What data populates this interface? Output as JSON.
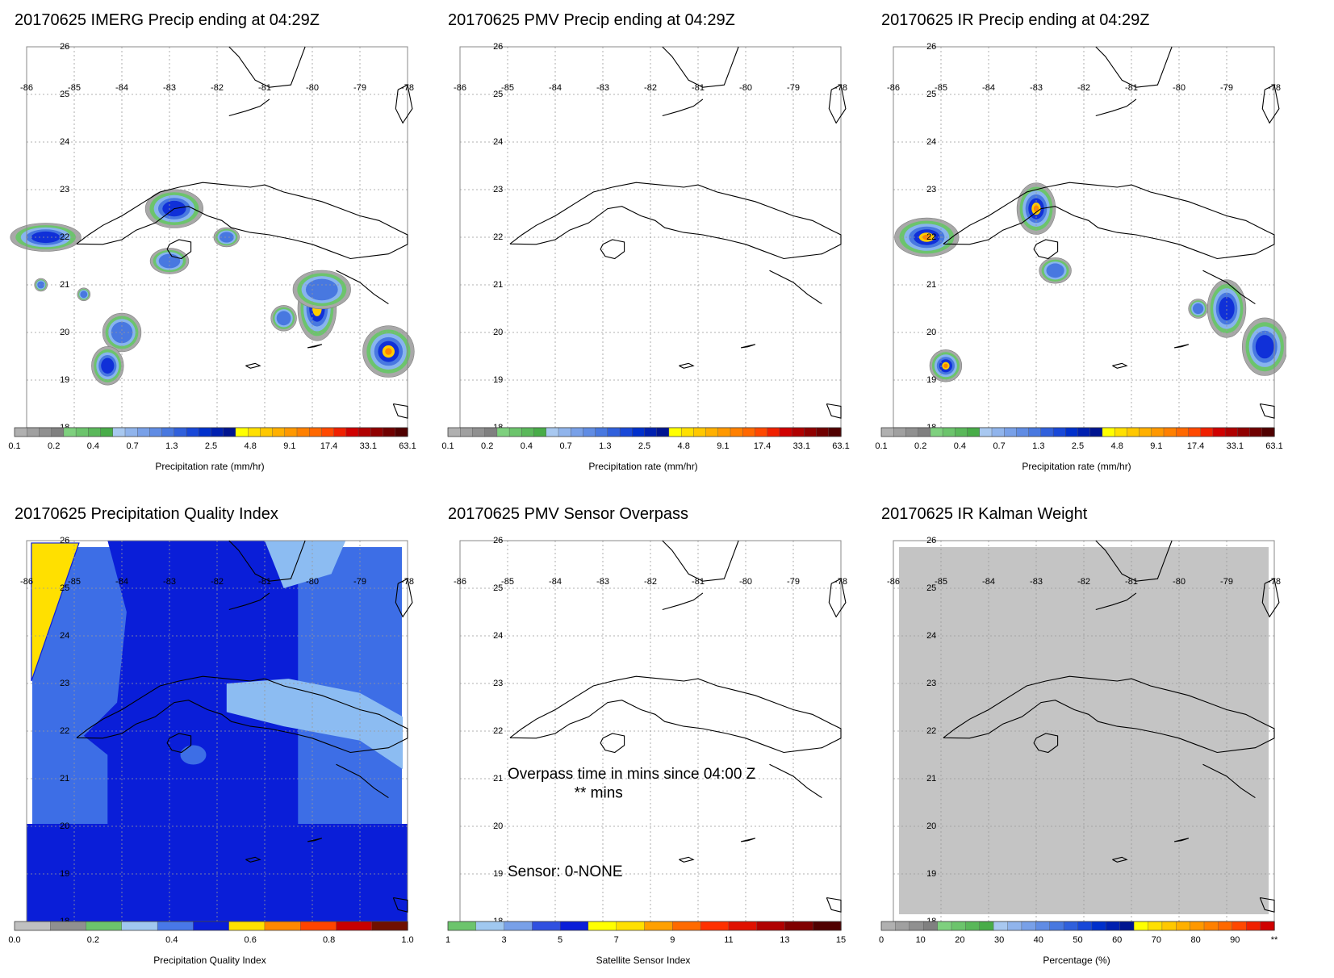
{
  "panels": [
    {
      "id": "imerg",
      "title": "20170625 IMERG Precip ending at 04:29Z",
      "field": "precip",
      "blobs": [
        {
          "lon": -85.6,
          "lat": 22.0,
          "rx": 0.55,
          "ry": 0.22,
          "peak": 2
        },
        {
          "lon": -82.9,
          "lat": 22.6,
          "rx": 0.45,
          "ry": 0.3,
          "peak": 2
        },
        {
          "lon": -83.0,
          "lat": 21.5,
          "rx": 0.3,
          "ry": 0.2,
          "peak": 1
        },
        {
          "lon": -81.8,
          "lat": 22.0,
          "rx": 0.2,
          "ry": 0.15,
          "peak": 1
        },
        {
          "lon": -84.0,
          "lat": 20.0,
          "rx": 0.3,
          "ry": 0.3,
          "peak": 1
        },
        {
          "lon": -84.3,
          "lat": 19.3,
          "rx": 0.25,
          "ry": 0.3,
          "peak": 2
        },
        {
          "lon": -80.6,
          "lat": 20.3,
          "rx": 0.2,
          "ry": 0.2,
          "peak": 1
        },
        {
          "lon": -79.9,
          "lat": 20.5,
          "rx": 0.3,
          "ry": 0.5,
          "peak": 3
        },
        {
          "lon": -79.8,
          "lat": 20.9,
          "rx": 0.45,
          "ry": 0.3,
          "peak": 1
        },
        {
          "lon": -78.4,
          "lat": 19.6,
          "rx": 0.4,
          "ry": 0.4,
          "peak": 4
        },
        {
          "lon": -85.7,
          "lat": 21.0,
          "rx": 0.1,
          "ry": 0.1,
          "peak": 1
        },
        {
          "lon": -84.8,
          "lat": 20.8,
          "rx": 0.1,
          "ry": 0.1,
          "peak": 1
        }
      ],
      "colorbar": {
        "type": "precip",
        "tick_labels": [
          "0.1",
          "0.2",
          "0.4",
          "0.7",
          "1.3",
          "2.5",
          "4.8",
          "9.1",
          "17.4",
          "33.1",
          "63.1"
        ],
        "label": "Precipitation rate (mm/hr)"
      }
    },
    {
      "id": "pmv",
      "title": "20170625 PMV Precip ending at 04:29Z",
      "field": "none",
      "blobs": [],
      "colorbar": {
        "type": "precip",
        "tick_labels": [
          "0.1",
          "0.2",
          "0.4",
          "0.7",
          "1.3",
          "2.5",
          "4.8",
          "9.1",
          "17.4",
          "33.1",
          "63.1"
        ],
        "label": "Precipitation rate (mm/hr)"
      }
    },
    {
      "id": "ir",
      "title": "20170625 IR Precip ending at 04:29Z",
      "field": "precip",
      "blobs": [
        {
          "lon": -85.3,
          "lat": 22.0,
          "rx": 0.5,
          "ry": 0.3,
          "peak": 4
        },
        {
          "lon": -83.0,
          "lat": 22.6,
          "rx": 0.3,
          "ry": 0.4,
          "peak": 4
        },
        {
          "lon": -82.6,
          "lat": 21.3,
          "rx": 0.25,
          "ry": 0.2,
          "peak": 1
        },
        {
          "lon": -79.0,
          "lat": 20.5,
          "rx": 0.3,
          "ry": 0.45,
          "peak": 2
        },
        {
          "lon": -79.6,
          "lat": 20.5,
          "rx": 0.15,
          "ry": 0.15,
          "peak": 1
        },
        {
          "lon": -84.9,
          "lat": 19.3,
          "rx": 0.25,
          "ry": 0.25,
          "peak": 4
        },
        {
          "lon": -78.2,
          "lat": 19.7,
          "rx": 0.35,
          "ry": 0.45,
          "peak": 2
        }
      ],
      "colorbar": {
        "type": "precip",
        "tick_labels": [
          "0.1",
          "0.2",
          "0.4",
          "0.7",
          "1.3",
          "2.5",
          "4.8",
          "9.1",
          "17.4",
          "33.1",
          "63.1"
        ],
        "label": "Precipitation rate (mm/hr)"
      }
    },
    {
      "id": "pqi",
      "title": "20170625 Precipitation Quality Index",
      "field": "pqi",
      "blobs": [],
      "colorbar": {
        "type": "pqi",
        "tick_labels": [
          "0.0",
          "0.2",
          "0.4",
          "0.6",
          "0.8",
          "1.0"
        ],
        "label": "Precipitation Quality Index"
      }
    },
    {
      "id": "overpass",
      "title": "20170625 PMV Sensor Overpass",
      "field": "none",
      "blobs": [],
      "text_lines": [
        {
          "text": "Overpass time in mins since 04:00 Z",
          "lon": -85.0,
          "lat": 21.0
        },
        {
          "text": "** mins",
          "lon": -83.6,
          "lat": 20.6
        },
        {
          "text": "Sensor:   0-NONE",
          "lon": -85.0,
          "lat": 18.95
        }
      ],
      "colorbar": {
        "type": "sensor",
        "tick_labels": [
          "1",
          "3",
          "5",
          "7",
          "9",
          "11",
          "13",
          "15"
        ],
        "label": "Satellite Sensor Index"
      }
    },
    {
      "id": "kalman",
      "title": "20170625 IR Kalman Weight",
      "field": "kalman",
      "blobs": [],
      "colorbar": {
        "type": "percent",
        "tick_labels": [
          "0",
          "10",
          "20",
          "30",
          "40",
          "50",
          "60",
          "70",
          "80",
          "90",
          "**"
        ],
        "label": "Percentage (%)"
      }
    }
  ],
  "map": {
    "lon_labels": [
      "-86",
      "-85",
      "-84",
      "-83",
      "-82",
      "-81",
      "-80",
      "-79",
      "-78"
    ],
    "lat_labels": [
      "26",
      "25",
      "24",
      "23",
      "22",
      "21",
      "20",
      "19",
      "18"
    ]
  },
  "colors": {
    "precip_scale": [
      "#b0b0b0",
      "#a0a0a0",
      "#909090",
      "#808080",
      "#7ed07e",
      "#6cc46c",
      "#5ab85a",
      "#48ac48",
      "#a8c8f0",
      "#90b4ec",
      "#78a0e8",
      "#608ce4",
      "#4878e0",
      "#3060dc",
      "#1848d8",
      "#0030cc",
      "#0020b0",
      "#001490",
      "#ffff00",
      "#ffe000",
      "#ffc800",
      "#ffb000",
      "#ff9800",
      "#ff8000",
      "#ff6800",
      "#ff4800",
      "#f02000",
      "#d00000",
      "#b00000",
      "#900000",
      "#700000",
      "#500000"
    ],
    "pqi_scale": [
      "#c0c0c0",
      "#909090",
      "#6cc46c",
      "#a0c8f0",
      "#4878e8",
      "#0a1ed8",
      "#ffe000",
      "#ff8800",
      "#ff4400",
      "#c80000",
      "#701000"
    ],
    "sensor_scale": [
      "#6cc46c",
      "#a0c8f0",
      "#78a0e8",
      "#3050e0",
      "#0a1ed8",
      "#ffff00",
      "#ffe000",
      "#ffa000",
      "#ff6a00",
      "#ff3000",
      "#e01000",
      "#b00000",
      "#800000",
      "#500000"
    ],
    "percent_scale": [
      "#b0b0b0",
      "#a0a0a0",
      "#909090",
      "#808080",
      "#7ed07e",
      "#6cc46c",
      "#5ab85a",
      "#48ac48",
      "#a8c8f0",
      "#90b4ec",
      "#78a0e8",
      "#608ce4",
      "#4878e0",
      "#3060dc",
      "#1848d8",
      "#0030cc",
      "#0020b0",
      "#001490",
      "#ffff00",
      "#ffe000",
      "#ffc800",
      "#ffb000",
      "#ff9800",
      "#ff8000",
      "#ff6800",
      "#ff4800",
      "#f02000",
      "#d00000"
    ],
    "kalman_fill": "#c4c4c4",
    "pqi_yellow": "#ffe000",
    "pqi_mid": "#3d6ee6",
    "pqi_dark": "#0a1ed8",
    "pqi_light": "#8cbcf2"
  }
}
